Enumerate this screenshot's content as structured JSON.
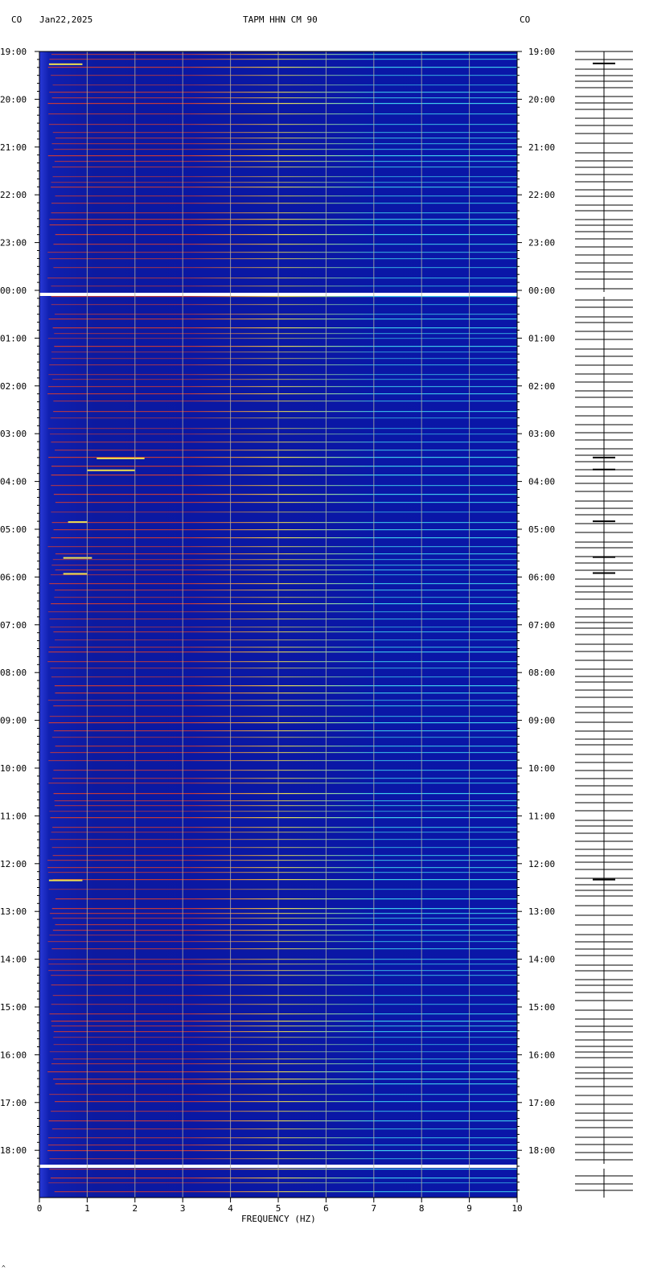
{
  "header": {
    "left_network": "CO",
    "date": "Jan22,2025",
    "title": "TAPM HHN CM 90",
    "right_network": "CO"
  },
  "chart_data": {
    "type": "heatmap",
    "title": "TAPM HHN CM 90",
    "xlabel": "FREQUENCY (HZ)",
    "ylabel": "",
    "xlim": [
      0,
      10
    ],
    "x_ticks": [
      "0",
      "1",
      "2",
      "3",
      "4",
      "5",
      "6",
      "7",
      "8",
      "9",
      "10"
    ],
    "time_labels": [
      "19:00",
      "20:00",
      "21:00",
      "22:00",
      "23:00",
      "00:00",
      "01:00",
      "02:00",
      "03:00",
      "04:00",
      "05:00",
      "06:00",
      "07:00",
      "08:00",
      "09:00",
      "10:00",
      "11:00",
      "12:00",
      "13:00",
      "14:00",
      "15:00",
      "16:00",
      "17:00",
      "18:00"
    ],
    "grid": true,
    "colors": {
      "background": "#0a16a8",
      "grid": "#b0b0a0",
      "low": "#1a2fc8",
      "mid": "#c83a3a",
      "high": "#f0e050",
      "peak": "#ffffff",
      "cyan": "#40d0f0"
    },
    "data_gaps": [
      "00:00",
      "18:15"
    ],
    "events_freq_hz": [
      {
        "time": "19:15",
        "freq_range": [
          0.2,
          0.9
        ]
      },
      {
        "time": "03:30",
        "freq_range": [
          1.2,
          2.2
        ]
      },
      {
        "time": "03:45",
        "freq_range": [
          1.0,
          2.0
        ]
      },
      {
        "time": "04:50",
        "freq_range": [
          0.6,
          1.0
        ]
      },
      {
        "time": "05:35",
        "freq_range": [
          0.5,
          1.1
        ]
      },
      {
        "time": "05:55",
        "freq_range": [
          0.5,
          1.0
        ]
      },
      {
        "time": "12:20",
        "freq_range": [
          0.2,
          0.9
        ]
      }
    ]
  },
  "footer": {
    "corner_mark": "^"
  }
}
